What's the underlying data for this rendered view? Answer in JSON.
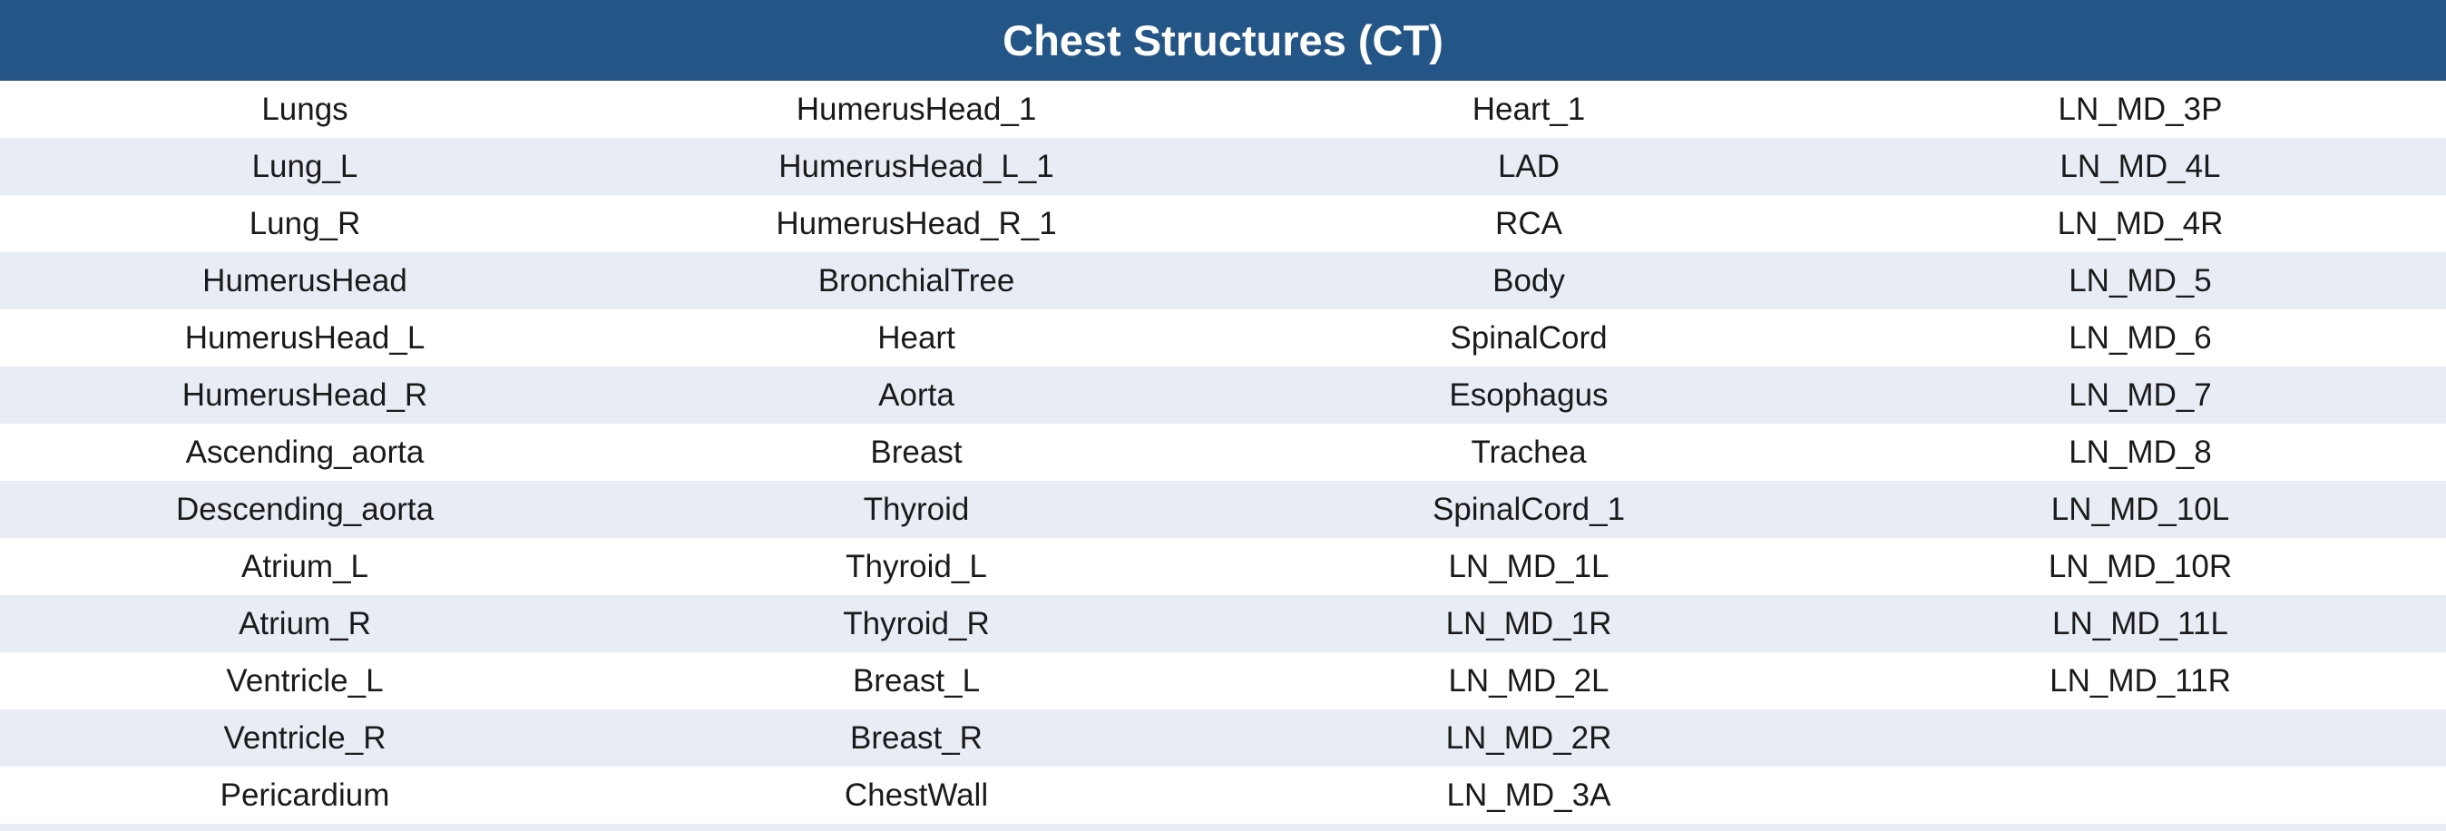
{
  "header": {
    "title": "Chest Structures (CT)"
  },
  "colors": {
    "header_bg": "#245587",
    "band_bg": "#e8edf5",
    "row_bg": "#ffffff"
  },
  "rows": [
    [
      "Lungs",
      "HumerusHead_1",
      "Heart_1",
      "LN_MD_3P"
    ],
    [
      "Lung_L",
      "HumerusHead_L_1",
      "LAD",
      "LN_MD_4L"
    ],
    [
      "Lung_R",
      "HumerusHead_R_1",
      "RCA",
      "LN_MD_4R"
    ],
    [
      "HumerusHead",
      "BronchialTree",
      "Body",
      "LN_MD_5"
    ],
    [
      "HumerusHead_L",
      "Heart",
      "SpinalCord",
      "LN_MD_6"
    ],
    [
      "HumerusHead_R",
      "Aorta",
      "Esophagus",
      "LN_MD_7"
    ],
    [
      "Ascending_aorta",
      "Breast",
      "Trachea",
      "LN_MD_8"
    ],
    [
      "Descending_aorta",
      "Thyroid",
      "SpinalCord_1",
      "LN_MD_10L"
    ],
    [
      "Atrium_L",
      "Thyroid_L",
      "LN_MD_1L",
      "LN_MD_10R"
    ],
    [
      "Atrium_R",
      "Thyroid_R",
      "LN_MD_1R",
      "LN_MD_11L"
    ],
    [
      "Ventricle_L",
      "Breast_L",
      "LN_MD_2L",
      "LN_MD_11R"
    ],
    [
      "Ventricle_R",
      "Breast_R",
      "LN_MD_2R",
      ""
    ],
    [
      "Pericardium",
      "ChestWall",
      "LN_MD_3A",
      ""
    ]
  ]
}
